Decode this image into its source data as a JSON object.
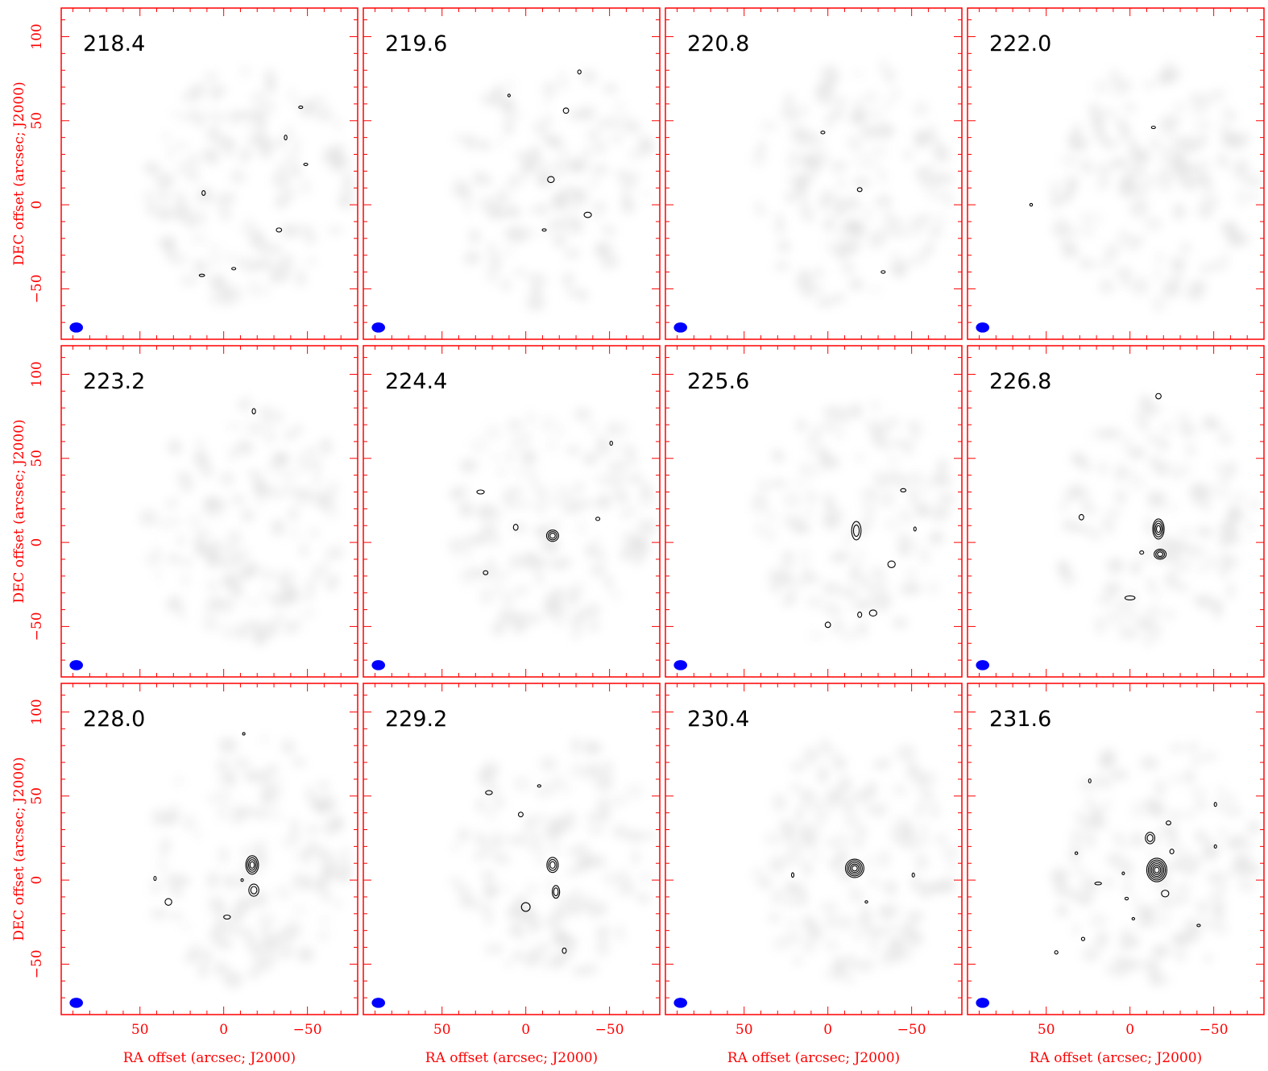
{
  "chart_data": {
    "type": "contour-map-grid",
    "xlabel": "RA offset (arcsec; J2000)",
    "ylabel": "DEC offset (arcsec; J2000)",
    "xlim": [
      97,
      -80
    ],
    "ylim": [
      -80,
      117
    ],
    "x_ticks": [
      50,
      0,
      -50
    ],
    "y_ticks": [
      100,
      50,
      0,
      -50
    ],
    "x_tick_labels": [
      "50",
      "0",
      "−50"
    ],
    "y_tick_labels": [
      "100",
      "50",
      "0",
      "−50"
    ],
    "colors": {
      "frame": "#ff0000",
      "beam": "#0000ff",
      "contour": "#000000",
      "noise": "#bdbdbd"
    },
    "beam": {
      "x": 88,
      "y": -73,
      "rx": 4,
      "ry": 3
    },
    "panels": [
      {
        "label": "218.4",
        "contours": [
          {
            "x": -46,
            "y": 58,
            "rx": 1.2,
            "ry": 0.5,
            "n": 1
          },
          {
            "x": -37,
            "y": 40,
            "rx": 0.8,
            "ry": 1.4,
            "n": 1
          },
          {
            "x": -49,
            "y": 24,
            "rx": 1.2,
            "ry": 0.6,
            "n": 1
          },
          {
            "x": 12,
            "y": 7,
            "rx": 1.0,
            "ry": 1.4,
            "n": 1
          },
          {
            "x": -33,
            "y": -15,
            "rx": 1.6,
            "ry": 1.2,
            "n": 1
          },
          {
            "x": 13,
            "y": -42,
            "rx": 1.6,
            "ry": 0.6,
            "n": 1
          },
          {
            "x": -6,
            "y": -38,
            "rx": 1.2,
            "ry": 0.4,
            "n": 1
          }
        ]
      },
      {
        "label": "219.6",
        "contours": [
          {
            "x": -32,
            "y": 79,
            "rx": 1.0,
            "ry": 1.2,
            "n": 1
          },
          {
            "x": 10,
            "y": 65,
            "rx": 0.6,
            "ry": 0.8,
            "n": 1
          },
          {
            "x": -24,
            "y": 56,
            "rx": 1.6,
            "ry": 1.6,
            "n": 1
          },
          {
            "x": -15,
            "y": 15,
            "rx": 2.0,
            "ry": 1.8,
            "n": 1
          },
          {
            "x": -37,
            "y": -6,
            "rx": 2.2,
            "ry": 1.6,
            "n": 1
          },
          {
            "x": -11,
            "y": -15,
            "rx": 1.2,
            "ry": 0.6,
            "n": 1
          }
        ]
      },
      {
        "label": "220.8",
        "contours": [
          {
            "x": 3,
            "y": 43,
            "rx": 1.2,
            "ry": 0.8,
            "n": 1
          },
          {
            "x": -19,
            "y": 9,
            "rx": 1.4,
            "ry": 1.2,
            "n": 1
          },
          {
            "x": -33,
            "y": -40,
            "rx": 1.2,
            "ry": 0.8,
            "n": 1
          }
        ]
      },
      {
        "label": "222.0",
        "contours": [
          {
            "x": -14,
            "y": 46,
            "rx": 1.2,
            "ry": 0.6,
            "n": 1
          },
          {
            "x": 59,
            "y": 0,
            "rx": 0.8,
            "ry": 0.8,
            "n": 1
          }
        ]
      },
      {
        "label": "223.2",
        "contours": [
          {
            "x": -18,
            "y": 78,
            "rx": 1.0,
            "ry": 1.6,
            "n": 1
          }
        ]
      },
      {
        "label": "224.4",
        "contours": [
          {
            "x": -51,
            "y": 59,
            "rx": 0.8,
            "ry": 1.2,
            "n": 1
          },
          {
            "x": 27,
            "y": 30,
            "rx": 2.2,
            "ry": 1.2,
            "n": 1
          },
          {
            "x": 6,
            "y": 9,
            "rx": 1.4,
            "ry": 1.8,
            "n": 1
          },
          {
            "x": -16,
            "y": 4,
            "rx": 3.6,
            "ry": 3.4,
            "n": 3
          },
          {
            "x": -43,
            "y": 14,
            "rx": 1.2,
            "ry": 1.0,
            "n": 1
          },
          {
            "x": 24,
            "y": -18,
            "rx": 1.4,
            "ry": 1.2,
            "n": 1
          }
        ]
      },
      {
        "label": "225.6",
        "contours": [
          {
            "x": -45,
            "y": 31,
            "rx": 1.6,
            "ry": 1.0,
            "n": 1
          },
          {
            "x": -17,
            "y": 7,
            "rx": 2.8,
            "ry": 5.5,
            "n": 2
          },
          {
            "x": -38,
            "y": -13,
            "rx": 2.2,
            "ry": 2.0,
            "n": 1
          },
          {
            "x": -27,
            "y": -42,
            "rx": 2.2,
            "ry": 1.8,
            "n": 1
          },
          {
            "x": -19,
            "y": -43,
            "rx": 1.2,
            "ry": 1.6,
            "n": 1
          },
          {
            "x": 0,
            "y": -49,
            "rx": 1.6,
            "ry": 1.6,
            "n": 1
          },
          {
            "x": -52,
            "y": 8,
            "rx": 0.6,
            "ry": 1.2,
            "n": 1
          }
        ]
      },
      {
        "label": "226.8",
        "contours": [
          {
            "x": -17,
            "y": 87,
            "rx": 1.6,
            "ry": 1.6,
            "n": 1
          },
          {
            "x": 29,
            "y": 15,
            "rx": 1.4,
            "ry": 1.6,
            "n": 1
          },
          {
            "x": -17,
            "y": 8,
            "rx": 3.4,
            "ry": 6.0,
            "n": 4
          },
          {
            "x": -18,
            "y": -7,
            "rx": 3.6,
            "ry": 3.0,
            "n": 3
          },
          {
            "x": -7,
            "y": -6,
            "rx": 1.2,
            "ry": 1.0,
            "n": 1
          },
          {
            "x": 0,
            "y": -33,
            "rx": 3.0,
            "ry": 1.2,
            "n": 1
          }
        ]
      },
      {
        "label": "228.0",
        "contours": [
          {
            "x": -17,
            "y": 9,
            "rx": 3.8,
            "ry": 5.5,
            "n": 4
          },
          {
            "x": -18,
            "y": -6,
            "rx": 3.0,
            "ry": 3.6,
            "n": 2
          },
          {
            "x": -11,
            "y": 0,
            "rx": 0.6,
            "ry": 0.8,
            "n": 1
          },
          {
            "x": 33,
            "y": -13,
            "rx": 2.0,
            "ry": 2.0,
            "n": 1
          },
          {
            "x": -2,
            "y": -22,
            "rx": 2.0,
            "ry": 1.2,
            "n": 1
          },
          {
            "x": 41,
            "y": 1,
            "rx": 0.6,
            "ry": 1.2,
            "n": 1
          },
          {
            "x": -12,
            "y": 87,
            "rx": 0.4,
            "ry": 0.4,
            "n": 1
          }
        ]
      },
      {
        "label": "229.2",
        "contours": [
          {
            "x": -16,
            "y": 9,
            "rx": 3.4,
            "ry": 4.5,
            "n": 3
          },
          {
            "x": -18,
            "y": -7,
            "rx": 2.2,
            "ry": 3.8,
            "n": 2
          },
          {
            "x": 0,
            "y": -16,
            "rx": 2.6,
            "ry": 2.6,
            "n": 1
          },
          {
            "x": 22,
            "y": 52,
            "rx": 2.0,
            "ry": 1.2,
            "n": 1
          },
          {
            "x": 3,
            "y": 39,
            "rx": 1.4,
            "ry": 1.4,
            "n": 1
          },
          {
            "x": -8,
            "y": 56,
            "rx": 1.0,
            "ry": 0.6,
            "n": 1
          },
          {
            "x": -23,
            "y": -42,
            "rx": 1.2,
            "ry": 1.6,
            "n": 1
          }
        ]
      },
      {
        "label": "230.4",
        "contours": [
          {
            "x": -16,
            "y": 7,
            "rx": 5.5,
            "ry": 5.5,
            "n": 5
          },
          {
            "x": 21,
            "y": 3,
            "rx": 0.6,
            "ry": 1.4,
            "n": 1
          },
          {
            "x": -51,
            "y": 3,
            "rx": 0.6,
            "ry": 1.2,
            "n": 1
          },
          {
            "x": -23,
            "y": -13,
            "rx": 0.8,
            "ry": 0.4,
            "n": 1
          }
        ]
      },
      {
        "label": "231.6",
        "contours": [
          {
            "x": -16,
            "y": 6,
            "rx": 6.0,
            "ry": 7.0,
            "n": 6
          },
          {
            "x": -12,
            "y": 25,
            "rx": 2.8,
            "ry": 3.4,
            "n": 2
          },
          {
            "x": -21,
            "y": -8,
            "rx": 2.2,
            "ry": 2.0,
            "n": 1
          },
          {
            "x": 32,
            "y": 16,
            "rx": 0.8,
            "ry": 0.8,
            "n": 1
          },
          {
            "x": 19,
            "y": -2,
            "rx": 2.0,
            "ry": 0.8,
            "n": 1
          },
          {
            "x": 4,
            "y": 4,
            "rx": 0.6,
            "ry": 0.8,
            "n": 1
          },
          {
            "x": 2,
            "y": -11,
            "rx": 1.0,
            "ry": 0.8,
            "n": 1
          },
          {
            "x": -23,
            "y": 34,
            "rx": 1.4,
            "ry": 1.2,
            "n": 1
          },
          {
            "x": -25,
            "y": 17,
            "rx": 1.2,
            "ry": 1.4,
            "n": 1
          },
          {
            "x": 24,
            "y": 59,
            "rx": 0.6,
            "ry": 1.2,
            "n": 1
          },
          {
            "x": -51,
            "y": 45,
            "rx": 0.6,
            "ry": 1.2,
            "n": 1
          },
          {
            "x": -51,
            "y": 20,
            "rx": 0.6,
            "ry": 1.0,
            "n": 1
          },
          {
            "x": 28,
            "y": -35,
            "rx": 1.0,
            "ry": 1.0,
            "n": 1
          },
          {
            "x": 44,
            "y": -43,
            "rx": 1.0,
            "ry": 1.0,
            "n": 1
          },
          {
            "x": -2,
            "y": -23,
            "rx": 0.8,
            "ry": 0.4,
            "n": 1
          },
          {
            "x": -41,
            "y": -27,
            "rx": 1.0,
            "ry": 0.6,
            "n": 1
          }
        ]
      }
    ]
  }
}
